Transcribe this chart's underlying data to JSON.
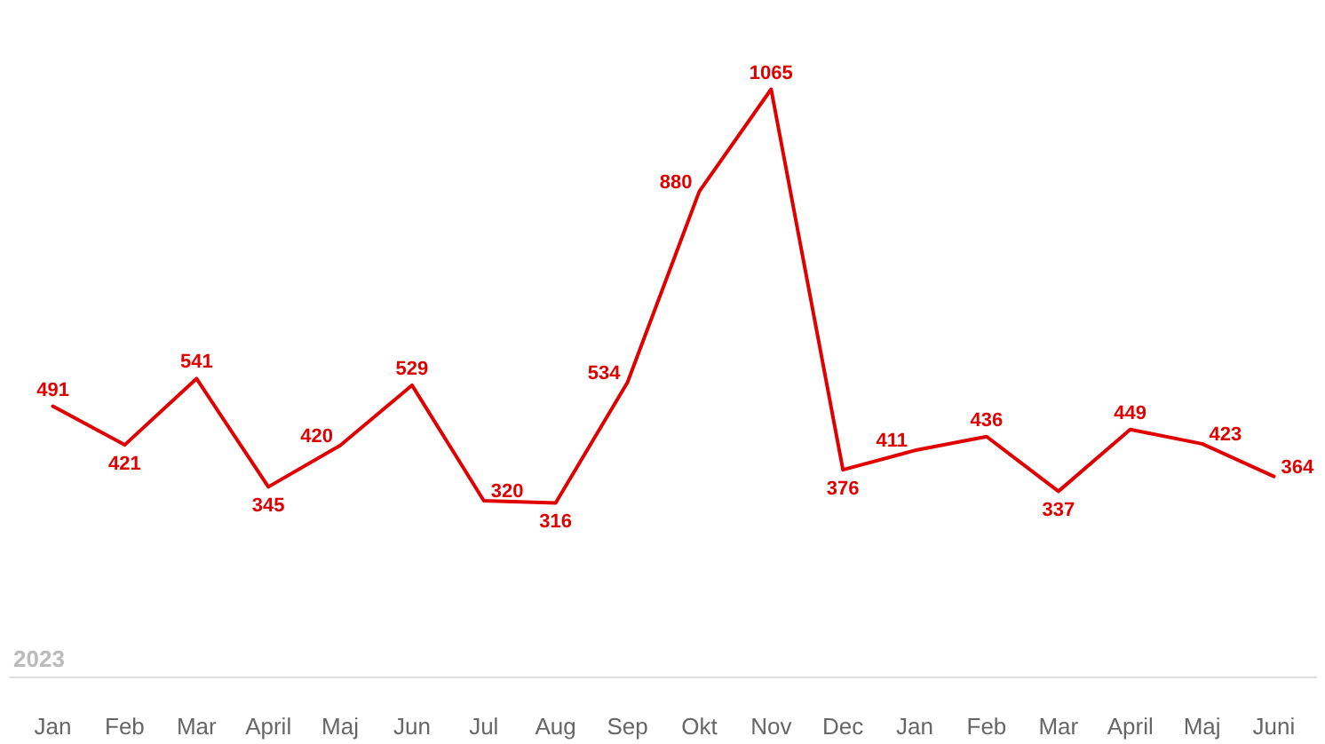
{
  "chart_data": {
    "type": "line",
    "categories": [
      "Jan",
      "Feb",
      "Mar",
      "April",
      "Maj",
      "Jun",
      "Jul",
      "Aug",
      "Sep",
      "Okt",
      "Nov",
      "Dec",
      "Jan",
      "Feb",
      "Mar",
      "April",
      "Maj",
      "Juni"
    ],
    "series": [
      {
        "color": "#e00000",
        "values": [
          491,
          421,
          541,
          345,
          420,
          529,
          320,
          316,
          534,
          880,
          1065,
          376,
          411,
          436,
          337,
          449,
          423,
          364
        ]
      }
    ],
    "data_labels": true,
    "grid": false,
    "line_style": "solid",
    "annotations": [
      "2023"
    ]
  }
}
